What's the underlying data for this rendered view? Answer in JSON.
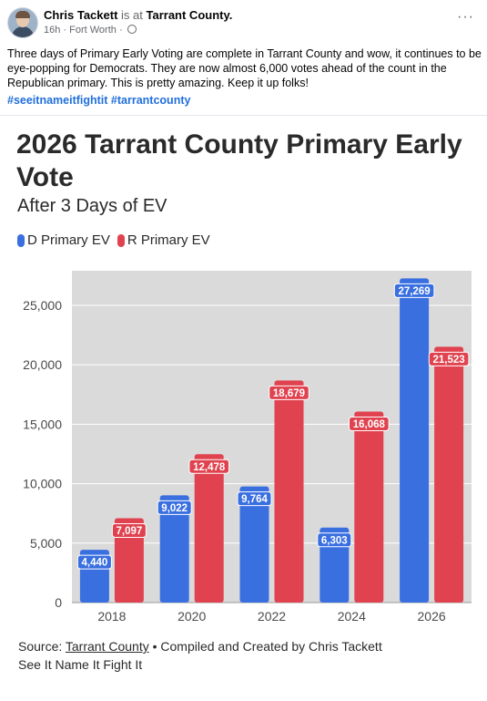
{
  "post": {
    "author": "Chris Tackett",
    "is_at": "is at",
    "location": "Tarrant County.",
    "time": "16h",
    "place": "Fort Worth",
    "text": "Three days of Primary Early Voting are complete in Tarrant County and wow, it continues to be eye-popping for Democrats. They are now almost 6,000 votes ahead of the count in the Republican primary. This is pretty amazing. Keep it up folks!",
    "hashtag_1": "#seeitnameitfightit",
    "hashtag_2": "#tarrantcounty",
    "more_label": "···"
  },
  "colors": {
    "d": "#3a6fe0",
    "r": "#e0434f",
    "plot_bg": "#dadada",
    "link": "#216fdb"
  },
  "chart_data": {
    "type": "bar",
    "title": "2026 Tarrant County Primary Early Vote",
    "subtitle": "After 3 Days of EV",
    "categories": [
      "2018",
      "2020",
      "2022",
      "2024",
      "2026"
    ],
    "series": [
      {
        "name": "D Primary EV",
        "values": [
          4440,
          9022,
          9764,
          6303,
          27269
        ],
        "labels": [
          "4,440",
          "9,022",
          "9,764",
          "6,303",
          "27,269"
        ]
      },
      {
        "name": "R Primary EV",
        "values": [
          7097,
          12478,
          18679,
          16068,
          21523
        ],
        "labels": [
          "7,097",
          "12,478",
          "18,679",
          "16,068",
          "21,523"
        ]
      }
    ],
    "yticks": [
      0,
      5000,
      10000,
      15000,
      20000,
      25000
    ],
    "ytick_labels": [
      "0",
      "5,000",
      "10,000",
      "15,000",
      "20,000",
      "25,000"
    ],
    "ylim": [
      0,
      28000
    ],
    "grid": true,
    "legend_position": "top-left"
  },
  "source": {
    "prefix": "Source:",
    "link_text": "Tarrant County",
    "suffix": "• Compiled and Created by Chris Tackett",
    "credit": "See It Name It Fight It"
  }
}
